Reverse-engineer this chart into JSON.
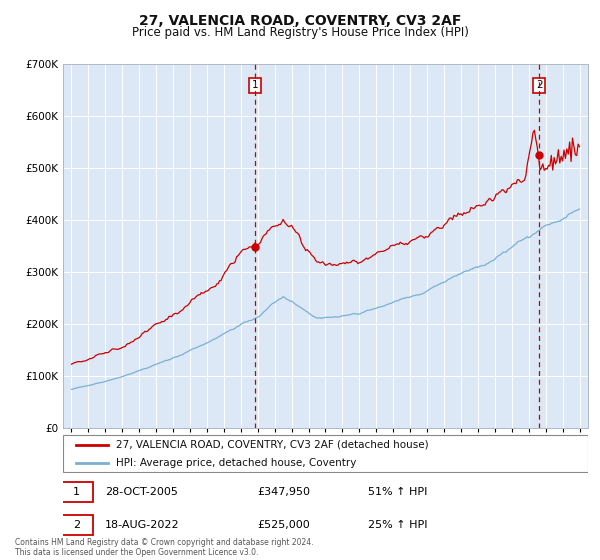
{
  "title": "27, VALENCIA ROAD, COVENTRY, CV3 2AF",
  "subtitle": "Price paid vs. HM Land Registry's House Price Index (HPI)",
  "title_fontsize": 10,
  "subtitle_fontsize": 8.5,
  "background_color": "#ffffff",
  "plot_bg_color": "#dce8f5",
  "grid_color": "#ffffff",
  "red_line_color": "#cc0000",
  "blue_line_color": "#7ab0d4",
  "marker1_x": 2005.82,
  "marker1_y": 347950,
  "marker2_x": 2022.63,
  "marker2_y": 525000,
  "vline1_x": 2005.82,
  "vline2_x": 2022.63,
  "legend_line1": "27, VALENCIA ROAD, COVENTRY, CV3 2AF (detached house)",
  "legend_line2": "HPI: Average price, detached house, Coventry",
  "table_row1": [
    "1",
    "28-OCT-2005",
    "£347,950",
    "51% ↑ HPI"
  ],
  "table_row2": [
    "2",
    "18-AUG-2022",
    "£525,000",
    "25% ↑ HPI"
  ],
  "footer": "Contains HM Land Registry data © Crown copyright and database right 2024.\nThis data is licensed under the Open Government Licence v3.0.",
  "ylim": [
    0,
    700000
  ],
  "xlim": [
    1994.5,
    2025.5
  ]
}
